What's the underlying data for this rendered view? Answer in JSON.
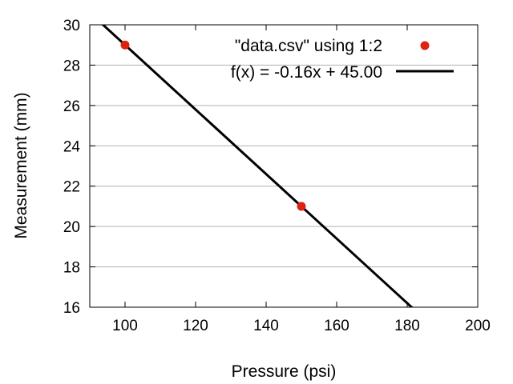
{
  "chart_data": {
    "type": "scatter",
    "xlabel": "Pressure (psi)",
    "ylabel": "Measurement (mm)",
    "xlim": [
      90,
      200
    ],
    "ylim": [
      16,
      30
    ],
    "xticks": [
      100,
      120,
      140,
      160,
      180,
      200
    ],
    "yticks": [
      16,
      18,
      20,
      22,
      24,
      26,
      28,
      30
    ],
    "grid": "horizontal",
    "legend_position": "top-right",
    "series": [
      {
        "name": "\"data.csv\" using 1:2",
        "kind": "points",
        "color": "#dd2211",
        "x": [
          100,
          150
        ],
        "y": [
          29,
          21
        ]
      },
      {
        "name": "f(x) = -0.16x + 45.00",
        "kind": "line",
        "color": "#000000",
        "slope": -0.16,
        "intercept": 45.0
      }
    ]
  }
}
